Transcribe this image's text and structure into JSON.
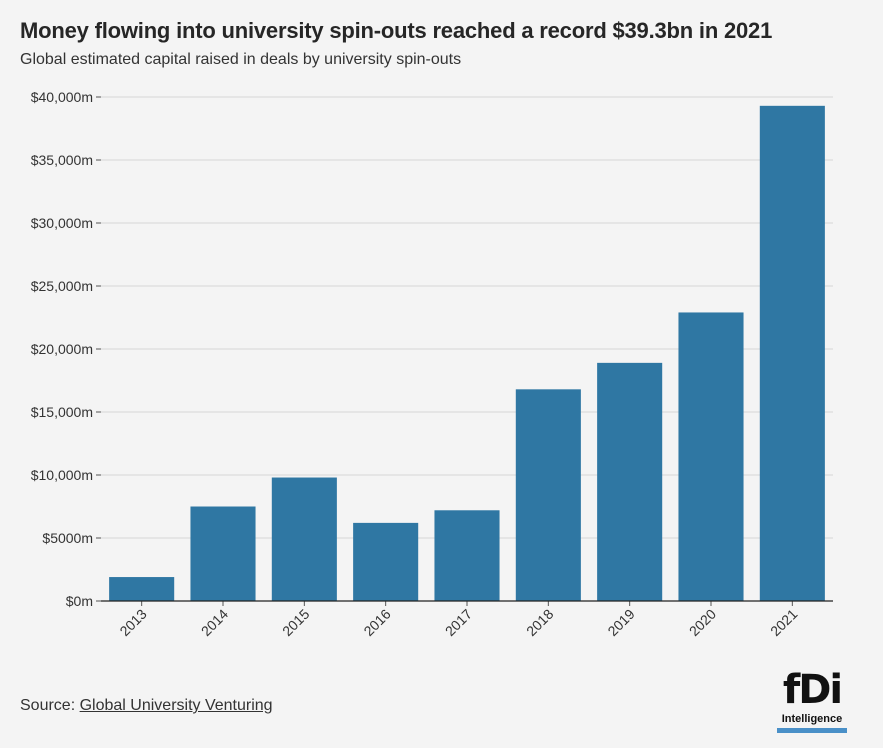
{
  "chart_data": {
    "type": "bar",
    "title": "Money flowing into university spin-outs reached a record $39.3bn in 2021",
    "subtitle": "Global estimated capital raised in deals by university spin-outs",
    "categories": [
      "2013",
      "2014",
      "2015",
      "2016",
      "2017",
      "2018",
      "2019",
      "2020",
      "2021"
    ],
    "values": [
      1900,
      7500,
      9800,
      6200,
      7200,
      16800,
      18900,
      22900,
      39300
    ],
    "ylim": [
      0,
      40000
    ],
    "yticks": [
      0,
      5000,
      10000,
      15000,
      20000,
      25000,
      30000,
      35000,
      40000
    ],
    "ytick_labels": [
      "$0m",
      "$5000m",
      "$10,000m",
      "$15,000m",
      "$20,000m",
      "$25,000m",
      "$30,000m",
      "$35,000m",
      "$40,000m"
    ],
    "grid": true,
    "bar_color": "#2f77a3"
  },
  "source": {
    "prefix": "Source: ",
    "link_text": "Global University Venturing"
  },
  "logo": {
    "mark": "fDi",
    "subtext": "Intelligence"
  }
}
